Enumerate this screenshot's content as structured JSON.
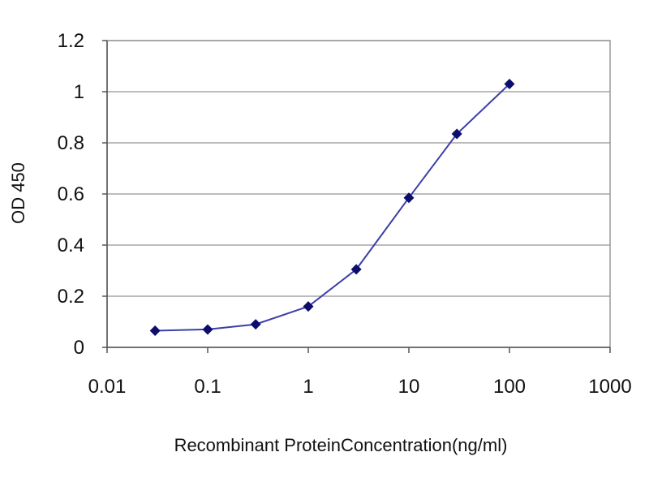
{
  "chart_data": {
    "type": "line",
    "title": "",
    "xlabel": "Recombinant ProteinConcentration(ng/ml)",
    "ylabel": "OD 450",
    "x_scale": "log",
    "xlim": [
      0.01,
      1000
    ],
    "ylim": [
      0,
      1.2
    ],
    "x_ticks": [
      "0.01",
      "0.1",
      "1",
      "10",
      "100",
      "1000"
    ],
    "x_tick_values": [
      0.01,
      0.1,
      1,
      10,
      100,
      1000
    ],
    "y_ticks": [
      "0",
      "0.2",
      "0.4",
      "0.6",
      "0.8",
      "1",
      "1.2"
    ],
    "y_tick_values": [
      0,
      0.2,
      0.4,
      0.6,
      0.8,
      1,
      1.2
    ],
    "grid": true,
    "legend": "none",
    "series": [
      {
        "x": [
          0.03,
          0.1,
          0.3,
          1,
          3,
          10,
          30,
          100
        ],
        "y": [
          0.065,
          0.07,
          0.09,
          0.16,
          0.305,
          0.585,
          0.835,
          1.03
        ],
        "color": "#3b3fa8",
        "marker_color": "#0d0d6e"
      }
    ]
  }
}
